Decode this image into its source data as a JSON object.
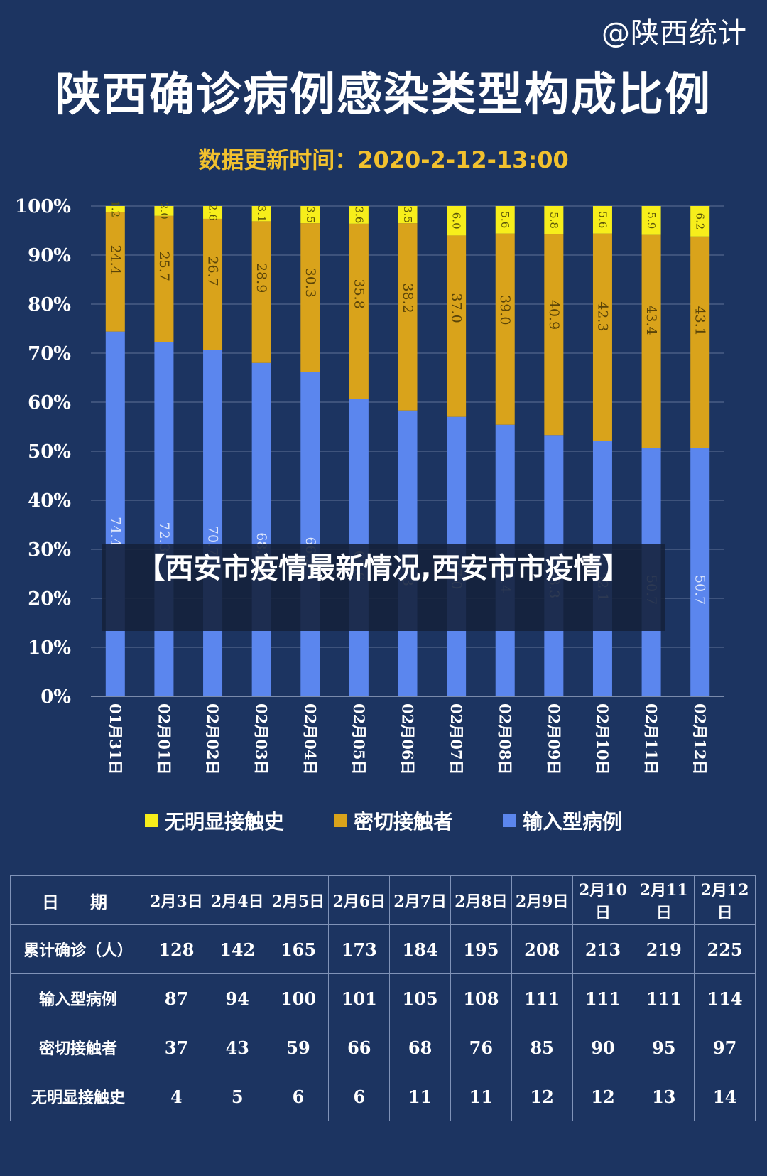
{
  "watermark": "@陕西统计",
  "title": "陕西确诊病例感染类型构成比例",
  "update": "数据更新时间：2020-2-12-13:00",
  "overlay": "【西安市疫情最新情况,西安市市疫情】",
  "colors": {
    "background": "#1c3461",
    "unknown": "#f7ee1b",
    "contact": "#d9a31b",
    "imported": "#5b86ee",
    "grid": "#9aa6c2"
  },
  "chart_data": {
    "type": "bar",
    "stacked": true,
    "categories": [
      "01月31日",
      "02月01日",
      "02月02日",
      "02月03日",
      "02月04日",
      "02月05日",
      "02月06日",
      "02月07日",
      "02月08日",
      "02月09日",
      "02月10日",
      "02月11日",
      "02月12日"
    ],
    "series": [
      {
        "name": "输入型病例",
        "values": [
          74.4,
          72.3,
          70.7,
          68.0,
          66.2,
          60.6,
          58.3,
          57.0,
          55.4,
          53.3,
          52.1,
          50.7,
          50.7
        ]
      },
      {
        "name": "密切接触者",
        "values": [
          24.4,
          25.7,
          26.7,
          28.9,
          30.3,
          35.8,
          38.2,
          37.0,
          39.0,
          40.9,
          42.3,
          43.4,
          43.1
        ]
      },
      {
        "name": "无明显接触史",
        "values": [
          1.2,
          2.0,
          2.6,
          3.1,
          3.5,
          3.6,
          3.5,
          6.0,
          5.6,
          5.8,
          5.6,
          5.9,
          6.2
        ]
      }
    ],
    "yticks": [
      "0%",
      "10%",
      "20%",
      "30%",
      "40%",
      "50%",
      "60%",
      "70%",
      "80%",
      "90%",
      "100%"
    ],
    "ylim": [
      0,
      100
    ],
    "grid": true,
    "legend": [
      "无明显接触史",
      "密切接触者",
      "输入型病例"
    ],
    "legend_position": "bottom"
  },
  "table": {
    "header": [
      "日　期",
      "2月3日",
      "2月4日",
      "2月5日",
      "2月6日",
      "2月7日",
      "2月8日",
      "2月9日",
      "2月10日",
      "2月11日",
      "2月12日"
    ],
    "rows": [
      {
        "label": "累计确诊（人）",
        "values": [
          "128",
          "142",
          "165",
          "173",
          "184",
          "195",
          "208",
          "213",
          "219",
          "225"
        ]
      },
      {
        "label": "输入型病例",
        "values": [
          "87",
          "94",
          "100",
          "101",
          "105",
          "108",
          "111",
          "111",
          "111",
          "114"
        ]
      },
      {
        "label": "密切接触者",
        "values": [
          "37",
          "43",
          "59",
          "66",
          "68",
          "76",
          "85",
          "90",
          "95",
          "97"
        ]
      },
      {
        "label": "无明显接触史",
        "values": [
          "4",
          "5",
          "6",
          "6",
          "11",
          "11",
          "12",
          "12",
          "13",
          "14"
        ]
      }
    ]
  }
}
